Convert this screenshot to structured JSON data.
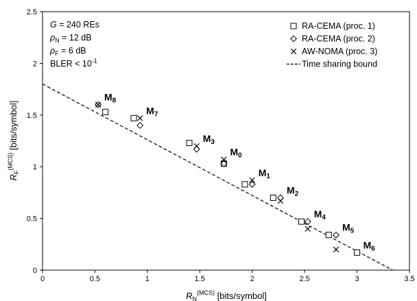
{
  "chart_data": {
    "type": "scatter",
    "xlabel": {
      "base": "R",
      "sub": "N",
      "sup": "(MCS)",
      "unit": "[bits/symbol]"
    },
    "ylabel": {
      "base": "R",
      "sub": "F",
      "sup": "(MCS)",
      "unit": "[bits/symbol]"
    },
    "xlim": [
      0,
      3.5
    ],
    "ylim": [
      0,
      2.5
    ],
    "xticks": [
      "0",
      "0.5",
      "1",
      "1.5",
      "2",
      "2.5",
      "3",
      "3.5"
    ],
    "yticks": [
      "0",
      "0.5",
      "1",
      "1.5",
      "2",
      "2.5"
    ],
    "annotations": [
      {
        "base": "G",
        "rest": " = 240 REs"
      },
      {
        "base": "ρ",
        "sub": "N",
        "rest": " = 12 dB"
      },
      {
        "base": "ρ",
        "sub": "F",
        "rest": " = 6 dB"
      },
      {
        "text": "BLER < 10",
        "sup": "-1"
      }
    ],
    "legend_position": "top-right",
    "series": [
      {
        "name": "RA-CEMA (proc. 1)",
        "marker": "square",
        "points": [
          [
            0.6,
            1.53
          ],
          [
            0.87,
            1.47
          ],
          [
            1.4,
            1.23
          ],
          [
            1.73,
            1.03
          ],
          [
            1.93,
            0.83
          ],
          [
            2.2,
            0.7
          ],
          [
            2.47,
            0.47
          ],
          [
            2.73,
            0.34
          ],
          [
            3.0,
            0.17
          ]
        ]
      },
      {
        "name": "RA-CEMA (proc. 2)",
        "marker": "diamond",
        "points": [
          [
            0.53,
            1.6
          ],
          [
            0.93,
            1.4
          ],
          [
            1.47,
            1.17
          ],
          [
            1.73,
            1.03
          ],
          [
            2.0,
            0.83
          ],
          [
            2.27,
            0.7
          ],
          [
            2.53,
            0.47
          ],
          [
            2.8,
            0.34
          ]
        ]
      },
      {
        "name": "AW-NOMA (proc. 3)",
        "marker": "x",
        "points": [
          [
            0.53,
            1.6
          ],
          [
            0.93,
            1.47
          ],
          [
            1.47,
            1.2
          ],
          [
            1.73,
            1.07
          ],
          [
            2.0,
            0.87
          ],
          [
            2.27,
            0.67
          ],
          [
            2.53,
            0.4
          ],
          [
            2.8,
            0.2
          ]
        ]
      }
    ],
    "bound": {
      "name": "Time sharing bound",
      "style": "dashed",
      "points": [
        [
          0,
          1.8
        ],
        [
          3.34,
          0
        ]
      ]
    },
    "labels": [
      {
        "base": "M",
        "sub": "8",
        "x": 0.53,
        "y": 1.6
      },
      {
        "base": "M",
        "sub": "7",
        "x": 0.93,
        "y": 1.47
      },
      {
        "base": "M",
        "sub": "3",
        "x": 1.47,
        "y": 1.2
      },
      {
        "base": "M",
        "sub": "0",
        "x": 1.73,
        "y": 1.07
      },
      {
        "base": "M",
        "sub": "1",
        "x": 2.0,
        "y": 0.87
      },
      {
        "base": "M",
        "sub": "2",
        "x": 2.27,
        "y": 0.7
      },
      {
        "base": "M",
        "sub": "4",
        "x": 2.53,
        "y": 0.47
      },
      {
        "base": "M",
        "sub": "5",
        "x": 2.8,
        "y": 0.34
      },
      {
        "base": "M",
        "sub": "6",
        "x": 3.0,
        "y": 0.17
      }
    ]
  }
}
